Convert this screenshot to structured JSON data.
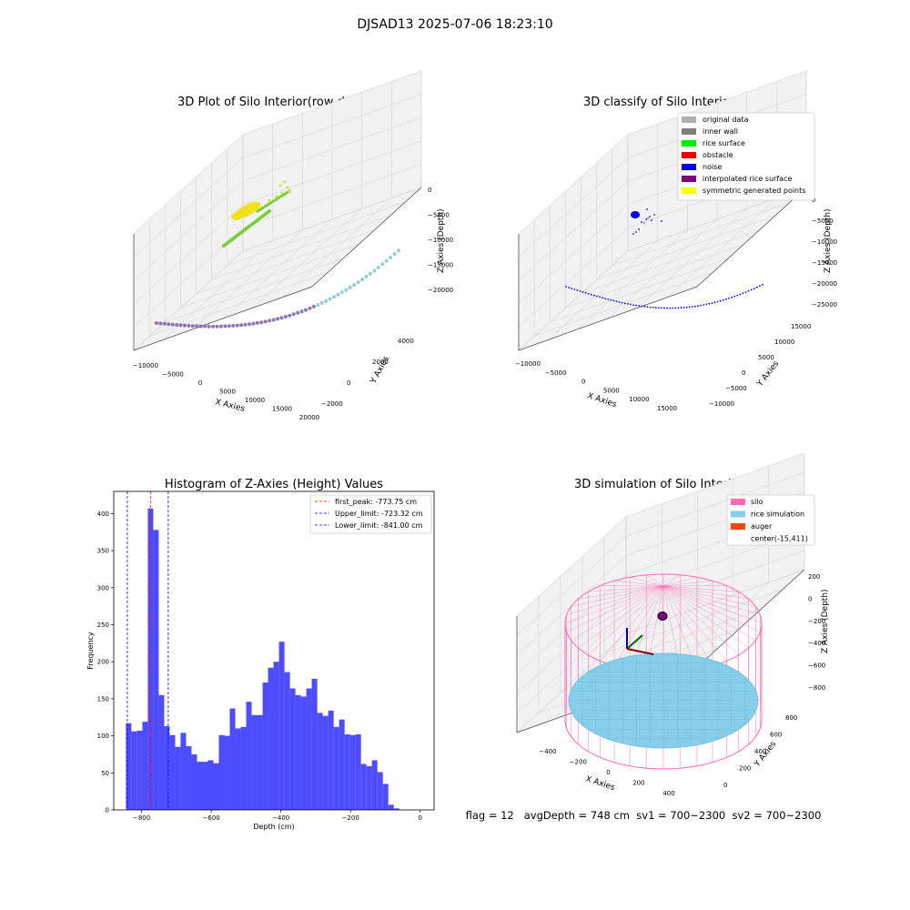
{
  "figure": {
    "suptitle": "DJSAD13 2025-07-06 18:23:10",
    "status_line": "flag = 12   avgDepth = 748 cm  sv1 = 700~2300  sv2 = 700~2300"
  },
  "colors": {
    "pane": "#f2f2f2",
    "grid": "#d0d0d0",
    "axis": "#444444",
    "histogram_bar": "#4d4dff",
    "peak_line": "#ff0000",
    "limit_line": "#0000ff",
    "silo": "#ff69b4",
    "rice": "#87ceeb",
    "rice_mesh": "#5aa7c4",
    "auger": "#ff4500",
    "yellow": "#f2e11a",
    "green": "#7ccd3a",
    "purple": "#7b5ea7",
    "teal": "#7fc8c8",
    "noise": "#0000ee",
    "gray": "#a9a9a9"
  },
  "chart_data": [
    {
      "type": "scatter",
      "title": "3D Plot of Silo Interior(row data)",
      "projection": "3d",
      "xlabel": "X Axies",
      "ylabel": "Y Axies",
      "zlabel": "Z Axies (Depth)",
      "x_ticks": [
        "−10000",
        "−5000",
        "0",
        "5000",
        "10000",
        "15000",
        "20000"
      ],
      "y_ticks": [
        "−2000",
        "0",
        "2000",
        "4000"
      ],
      "z_ticks": [
        "0",
        "−5000",
        "−10000",
        "−15000",
        "−20000"
      ],
      "grid": true,
      "legend": null
    },
    {
      "type": "scatter",
      "title": "3D classify of Silo Interior",
      "projection": "3d",
      "xlabel": "X Axies",
      "ylabel": "Y Axies",
      "zlabel": "Z Axies (Depth)",
      "x_ticks": [
        "−10000",
        "−5000",
        "0",
        "5000",
        "10000",
        "15000"
      ],
      "y_ticks": [
        "−10000",
        "−5000",
        "0",
        "5000",
        "10000",
        "15000"
      ],
      "z_ticks": [
        "0",
        "−5000",
        "−10000",
        "−15000",
        "−20000",
        "−25000"
      ],
      "grid": true,
      "legend_placement": "top-right",
      "legend": [
        {
          "label": "original data",
          "color": "#b0b0b0"
        },
        {
          "label": "inner wall",
          "color": "#808080"
        },
        {
          "label": "rice surface",
          "color": "#00ee00"
        },
        {
          "label": "obstacle",
          "color": "#ee0000"
        },
        {
          "label": "noise",
          "color": "#0000ee"
        },
        {
          "label": "interpolated rice surface",
          "color": "#800080"
        },
        {
          "label": "symmetric generated points",
          "color": "#ffff00"
        }
      ]
    },
    {
      "type": "bar",
      "title": "Histogram of Z-Axies (Height) Values",
      "xlabel": "Depth (cm)",
      "ylabel": "Frequency",
      "xlim": [
        -880,
        40
      ],
      "ylim": [
        0,
        430
      ],
      "x_ticks": [
        -800,
        -600,
        -400,
        -200,
        0
      ],
      "x_tick_labels": [
        "−800",
        "−600",
        "−400",
        "−200",
        "0"
      ],
      "y_ticks": [
        0,
        50,
        100,
        150,
        200,
        250,
        300,
        350,
        400
      ],
      "bin_start": -845,
      "bin_width": 15.7,
      "values": [
        117,
        106,
        107,
        119,
        407,
        378,
        155,
        113,
        101,
        85,
        104,
        86,
        75,
        65,
        65,
        67,
        63,
        101,
        100,
        137,
        110,
        112,
        146,
        128,
        128,
        172,
        192,
        200,
        227,
        186,
        164,
        155,
        153,
        164,
        177,
        131,
        127,
        134,
        112,
        122,
        102,
        101,
        102,
        62,
        59,
        67,
        51,
        35,
        7,
        2
      ],
      "vlines": [
        {
          "label": "first_peak: -773.75 cm",
          "x": -773.75,
          "color": "#ff0000"
        },
        {
          "label": "Upper_limit: -723.32 cm",
          "x": -723.32,
          "color": "#0000ff"
        },
        {
          "label": "Lower_limit: -841.00 cm",
          "x": -841.0,
          "color": "#0000ff"
        }
      ],
      "legend_placement": "top-right"
    },
    {
      "type": "scatter",
      "title": "3D simulation of Silo Interior",
      "projection": "3d",
      "xlabel": "X Axies",
      "ylabel": "Y Axies",
      "zlabel": "Z Axies (Depth)",
      "x_ticks": [
        "−400",
        "−200",
        "0",
        "200",
        "400"
      ],
      "y_ticks": [
        "0",
        "200",
        "400",
        "600",
        "800"
      ],
      "z_ticks": [
        "200",
        "0",
        "−200",
        "−400",
        "−600",
        "−800"
      ],
      "grid": true,
      "legend_placement": "top-right",
      "legend": [
        {
          "label": "silo",
          "color": "#ff69b4"
        },
        {
          "label": "rice simulation",
          "color": "#87ceeb"
        },
        {
          "label": "auger",
          "color": "#ff4500"
        },
        {
          "label": "center(-15,411)",
          "color": ""
        }
      ]
    }
  ]
}
